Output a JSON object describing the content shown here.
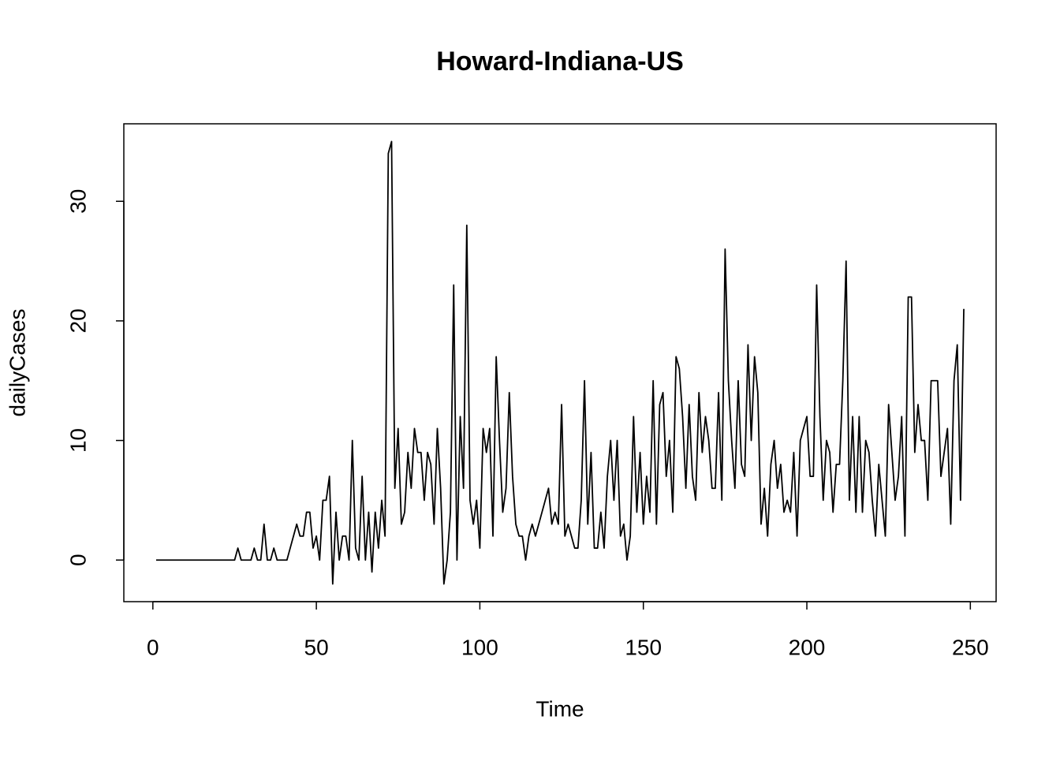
{
  "chart_data": {
    "type": "line",
    "title": "Howard-Indiana-US",
    "x_label": "Time",
    "y_label": "dailyCases",
    "color": "#000000",
    "x": [
      1,
      2,
      3,
      4,
      5,
      6,
      7,
      8,
      9,
      10,
      11,
      12,
      13,
      14,
      15,
      16,
      17,
      18,
      19,
      20,
      21,
      22,
      23,
      24,
      25,
      26,
      27,
      28,
      29,
      30,
      31,
      32,
      33,
      34,
      35,
      36,
      37,
      38,
      39,
      40,
      41,
      42,
      43,
      44,
      45,
      46,
      47,
      48,
      49,
      50,
      51,
      52,
      53,
      54,
      55,
      56,
      57,
      58,
      59,
      60,
      61,
      62,
      63,
      64,
      65,
      66,
      67,
      68,
      69,
      70,
      71,
      72,
      73,
      74,
      75,
      76,
      77,
      78,
      79,
      80,
      81,
      82,
      83,
      84,
      85,
      86,
      87,
      88,
      89,
      90,
      91,
      92,
      93,
      94,
      95,
      96,
      97,
      98,
      99,
      100,
      101,
      102,
      103,
      104,
      105,
      106,
      107,
      108,
      109,
      110,
      111,
      112,
      113,
      114,
      115,
      116,
      117,
      118,
      119,
      120,
      121,
      122,
      123,
      124,
      125,
      126,
      127,
      128,
      129,
      130,
      131,
      132,
      133,
      134,
      135,
      136,
      137,
      138,
      139,
      140,
      141,
      142,
      143,
      144,
      145,
      146,
      147,
      148,
      149,
      150,
      151,
      152,
      153,
      154,
      155,
      156,
      157,
      158,
      159,
      160,
      161,
      162,
      163,
      164,
      165,
      166,
      167,
      168,
      169,
      170,
      171,
      172,
      173,
      174,
      175,
      176,
      177,
      178,
      179,
      180,
      181,
      182,
      183,
      184,
      185,
      186,
      187,
      188,
      189,
      190,
      191,
      192,
      193,
      194,
      195,
      196,
      197,
      198,
      199,
      200,
      201,
      202,
      203,
      204,
      205,
      206,
      207,
      208,
      209,
      210,
      211,
      212,
      213,
      214,
      215,
      216,
      217,
      218,
      219,
      220,
      221,
      222,
      223,
      224,
      225,
      226,
      227,
      228,
      229,
      230,
      231,
      232,
      233,
      234,
      235,
      236,
      237,
      238,
      239,
      240,
      241,
      242,
      243,
      244,
      245,
      246,
      247,
      248
    ],
    "values": [
      0,
      0,
      0,
      0,
      0,
      0,
      0,
      0,
      0,
      0,
      0,
      0,
      0,
      0,
      0,
      0,
      0,
      0,
      0,
      0,
      0,
      0,
      0,
      0,
      0,
      1,
      0,
      0,
      0,
      0,
      1,
      0,
      0,
      3,
      0,
      0,
      1,
      0,
      0,
      0,
      0,
      1,
      2,
      3,
      2,
      2,
      4,
      4,
      1,
      2,
      0,
      5,
      5,
      7,
      -2,
      4,
      0,
      2,
      2,
      0,
      10,
      1,
      0,
      7,
      0,
      4,
      -1,
      4,
      1,
      5,
      2,
      34,
      35,
      6,
      11,
      3,
      4,
      9,
      6,
      11,
      9,
      9,
      5,
      9,
      8,
      3,
      11,
      6,
      -2,
      0,
      4,
      23,
      0,
      12,
      6,
      28,
      5,
      3,
      5,
      1,
      11,
      9,
      11,
      2,
      17,
      10,
      4,
      6,
      14,
      7,
      3,
      2,
      2,
      0,
      2,
      3,
      2,
      3,
      4,
      5,
      6,
      3,
      4,
      3,
      13,
      2,
      3,
      2,
      1,
      1,
      5,
      15,
      3,
      9,
      1,
      1,
      4,
      1,
      7,
      10,
      5,
      10,
      2,
      3,
      0,
      2,
      12,
      4,
      9,
      3,
      7,
      4,
      15,
      3,
      13,
      14,
      7,
      10,
      4,
      17,
      16,
      12,
      6,
      13,
      7,
      5,
      14,
      9,
      12,
      10,
      6,
      6,
      14,
      5,
      26,
      15,
      10,
      6,
      15,
      8,
      7,
      18,
      10,
      17,
      14,
      3,
      6,
      2,
      8,
      10,
      6,
      8,
      4,
      5,
      4,
      9,
      2,
      10,
      11,
      12,
      7,
      7,
      23,
      12,
      5,
      10,
      9,
      4,
      8,
      8,
      15,
      25,
      5,
      12,
      4,
      12,
      4,
      10,
      9,
      5,
      2,
      8,
      5,
      2,
      13,
      9,
      5,
      7,
      12,
      2,
      22,
      22,
      9,
      13,
      10,
      10,
      5,
      15,
      15,
      15,
      7,
      9,
      11,
      3,
      15,
      18,
      5,
      21
    ],
    "xlim": [
      -8.88,
      257.88
    ],
    "ylim": [
      -3.48,
      36.48
    ],
    "xticks": [
      0,
      50,
      100,
      150,
      200,
      250
    ],
    "yticks": [
      0,
      10,
      20,
      30
    ]
  }
}
